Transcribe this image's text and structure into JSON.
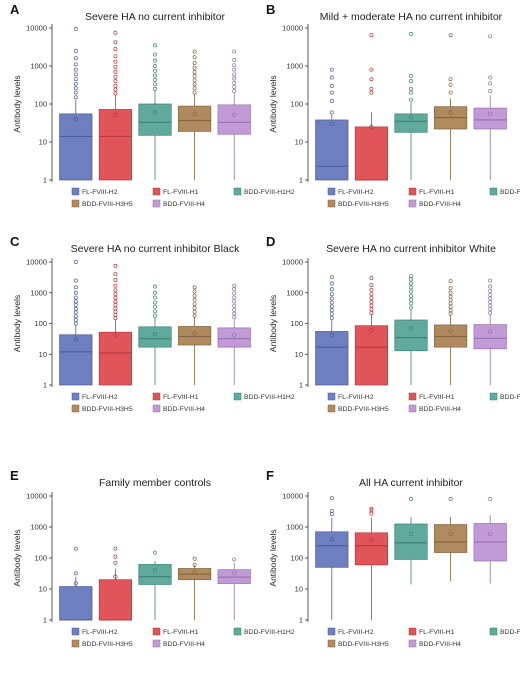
{
  "legend": {
    "series": [
      {
        "name": "FL-FVIII-H2",
        "fill": "#6e7fbf",
        "stroke": "#4d5c99"
      },
      {
        "name": "FL-FVIII-H1",
        "fill": "#e0545a",
        "stroke": "#b83a40"
      },
      {
        "name": "BDD-FVIII-H1H2",
        "fill": "#5faa9c",
        "stroke": "#3e8275"
      },
      {
        "name": "BDD-FVIII-H3H5",
        "fill": "#b08a5f",
        "stroke": "#84643f"
      },
      {
        "name": "BDD-FVIII-H4",
        "fill": "#c39ad8",
        "stroke": "#9570ab"
      }
    ]
  },
  "chart_data": [
    {
      "type": "box",
      "letter": "A",
      "title": "Severe HA no current inhibitor",
      "ylabel": "Antibody levels",
      "yscale": "log",
      "ylim": [
        1,
        10000
      ],
      "yticks": [
        "1",
        "10",
        "100",
        "1000",
        "10000"
      ],
      "series": [
        {
          "name": "FL-FVIII-H2",
          "min": 1,
          "q1": 1,
          "median": 14,
          "q3": 55,
          "whisker_high": 130,
          "mean": 40,
          "outliers": [
            150,
            200,
            260,
            340,
            450,
            600,
            800,
            1100,
            1600,
            2500,
            9500
          ]
        },
        {
          "name": "FL-FVIII-H1",
          "min": 1,
          "q1": 1,
          "median": 14,
          "q3": 72,
          "whisker_high": 170,
          "mean": 52,
          "outliers": [
            190,
            240,
            300,
            400,
            520,
            700,
            950,
            1300,
            1800,
            2800,
            4200,
            7500
          ]
        },
        {
          "name": "BDD-FVIII-H1H2",
          "min": 1,
          "q1": 15,
          "median": 33,
          "q3": 100,
          "whisker_high": 230,
          "mean": 60,
          "outliers": [
            250,
            330,
            430,
            560,
            750,
            1000,
            1400,
            2000,
            3500
          ]
        },
        {
          "name": "BDD-FVIII-H3H5",
          "min": 1,
          "q1": 19,
          "median": 37,
          "q3": 88,
          "whisker_high": 180,
          "mean": 55,
          "outliers": [
            200,
            260,
            330,
            420,
            550,
            700,
            900,
            1200,
            1700,
            2400
          ]
        },
        {
          "name": "BDD-FVIII-H4",
          "min": 1,
          "q1": 16,
          "median": 33,
          "q3": 95,
          "whisker_high": 200,
          "mean": 52,
          "outliers": [
            220,
            280,
            360,
            470,
            600,
            800,
            1050,
            1450,
            2400
          ]
        }
      ]
    },
    {
      "type": "box",
      "letter": "B",
      "title": "Mild + moderate HA no current inhibitor",
      "ylabel": "Antibody levels",
      "yscale": "log",
      "ylim": [
        1,
        10000
      ],
      "yticks": [
        "1",
        "10",
        "100",
        "1000",
        "10000"
      ],
      "series": [
        {
          "name": "FL-FVIII-H2",
          "min": 1,
          "q1": 1,
          "median": 2.3,
          "q3": 38,
          "whisker_high": 52,
          "mean": 30,
          "outliers": [
            60,
            120,
            200,
            300,
            500,
            800
          ]
        },
        {
          "name": "FL-FVIII-H1",
          "min": 1,
          "q1": 1,
          "median": 1,
          "q3": 25,
          "whisker_high": 60,
          "mean": 25,
          "outliers": [
            200,
            250,
            450,
            800,
            6500
          ]
        },
        {
          "name": "BDD-FVIII-H1H2",
          "min": 1,
          "q1": 18,
          "median": 35,
          "q3": 55,
          "whisker_high": 110,
          "mean": 45,
          "outliers": [
            130,
            200,
            250,
            400,
            550,
            7000
          ]
        },
        {
          "name": "BDD-FVIII-H3H5",
          "min": 1,
          "q1": 22,
          "median": 44,
          "q3": 85,
          "whisker_high": 140,
          "mean": 60,
          "outliers": [
            200,
            320,
            450,
            6500
          ]
        },
        {
          "name": "BDD-FVIII-H4",
          "min": 1,
          "q1": 22,
          "median": 38,
          "q3": 78,
          "whisker_high": 170,
          "mean": 55,
          "outliers": [
            220,
            350,
            500,
            6000
          ]
        }
      ]
    },
    {
      "type": "box",
      "letter": "C",
      "title": "Severe HA no current inhibitor Black",
      "ylabel": "Antibody levels",
      "yscale": "log",
      "ylim": [
        1,
        10000
      ],
      "yticks": [
        "1",
        "10",
        "100",
        "1000",
        "10000"
      ],
      "series": [
        {
          "name": "FL-FVIII-H2",
          "min": 1,
          "q1": 1,
          "median": 12,
          "q3": 43,
          "whisker_high": 90,
          "mean": 30,
          "outliers": [
            100,
            130,
            170,
            230,
            300,
            400,
            520,
            700,
            1000,
            1500,
            2500,
            10000
          ]
        },
        {
          "name": "FL-FVIII-H1",
          "min": 1,
          "q1": 1,
          "median": 11,
          "q3": 52,
          "whisker_high": 130,
          "mean": 40,
          "outliers": [
            150,
            190,
            240,
            310,
            400,
            520,
            680,
            900,
            1200,
            1700,
            2600,
            4000,
            7500
          ]
        },
        {
          "name": "BDD-FVIII-H1H2",
          "min": 1,
          "q1": 17,
          "median": 32,
          "q3": 78,
          "whisker_high": 160,
          "mean": 45,
          "outliers": [
            180,
            250,
            350,
            480,
            700,
            1000,
            1600
          ]
        },
        {
          "name": "BDD-FVIII-H3H5",
          "min": 1,
          "q1": 20,
          "median": 38,
          "q3": 80,
          "whisker_high": 160,
          "mean": 48,
          "outliers": [
            180,
            240,
            320,
            430,
            600,
            800,
            1100,
            1500
          ]
        },
        {
          "name": "BDD-FVIII-H4",
          "min": 1,
          "q1": 17,
          "median": 32,
          "q3": 72,
          "whisker_high": 140,
          "mean": 42,
          "outliers": [
            160,
            210,
            280,
            380,
            520,
            700,
            950,
            1300,
            1700
          ]
        }
      ]
    },
    {
      "type": "box",
      "letter": "D",
      "title": "Severe HA no current inhibitor White",
      "ylabel": "Antibody levels",
      "yscale": "log",
      "ylim": [
        1,
        10000
      ],
      "yticks": [
        "1",
        "10",
        "100",
        "1000",
        "10000"
      ],
      "series": [
        {
          "name": "FL-FVIII-H2",
          "min": 1,
          "q1": 1,
          "median": 17,
          "q3": 55,
          "whisker_high": 130,
          "mean": 42,
          "outliers": [
            150,
            200,
            270,
            360,
            480,
            650,
            900,
            1300,
            2000,
            3200
          ]
        },
        {
          "name": "FL-FVIII-H1",
          "min": 1,
          "q1": 1,
          "median": 17,
          "q3": 85,
          "whisker_high": 200,
          "mean": 60,
          "outliers": [
            220,
            290,
            380,
            500,
            680,
            900,
            1250,
            1800,
            3000
          ]
        },
        {
          "name": "BDD-FVIII-H1H2",
          "min": 1,
          "q1": 13,
          "median": 35,
          "q3": 130,
          "whisker_high": 300,
          "mean": 70,
          "outliers": [
            330,
            450,
            600,
            800,
            1100,
            1500,
            2000,
            2700,
            3500
          ]
        },
        {
          "name": "BDD-FVIII-H3H5",
          "min": 1,
          "q1": 17,
          "median": 38,
          "q3": 90,
          "whisker_high": 190,
          "mean": 55,
          "outliers": [
            210,
            270,
            350,
            450,
            580,
            750,
            1000,
            1400,
            2400
          ]
        },
        {
          "name": "BDD-FVIII-H4",
          "min": 1,
          "q1": 15,
          "median": 33,
          "q3": 92,
          "whisker_high": 200,
          "mean": 55,
          "outliers": [
            220,
            290,
            380,
            500,
            650,
            850,
            1150,
            1600,
            2500
          ]
        }
      ]
    },
    {
      "type": "box",
      "letter": "E",
      "title": "Family member controls",
      "ylabel": "Antibody levels",
      "yscale": "log",
      "ylim": [
        1,
        10000
      ],
      "yticks": [
        "1",
        "10",
        "100",
        "1000",
        "10000"
      ],
      "series": [
        {
          "name": "FL-FVIII-H2",
          "min": 1,
          "q1": 1,
          "median": 1,
          "q3": 12,
          "whisker_high": 25,
          "mean": 15,
          "outliers": [
            32,
            200
          ]
        },
        {
          "name": "FL-FVIII-H1",
          "min": 1,
          "q1": 1,
          "median": 1,
          "q3": 20,
          "whisker_high": 45,
          "mean": 25,
          "outliers": [
            70,
            110,
            200
          ]
        },
        {
          "name": "BDD-FVIII-H1H2",
          "min": 1,
          "q1": 14,
          "median": 25,
          "q3": 62,
          "whisker_high": 80,
          "mean": 40,
          "outliers": [
            150
          ]
        },
        {
          "name": "BDD-FVIII-H3H5",
          "min": 1,
          "q1": 20,
          "median": 30,
          "q3": 46,
          "whisker_high": 58,
          "mean": 35,
          "outliers": [
            60,
            95
          ]
        },
        {
          "name": "BDD-FVIII-H4",
          "min": 1,
          "q1": 15,
          "median": 24,
          "q3": 42,
          "whisker_high": 70,
          "mean": 32,
          "outliers": [
            90
          ]
        }
      ]
    },
    {
      "type": "box",
      "letter": "F",
      "title": "All HA current inhibitor",
      "ylabel": "Antibody levels",
      "yscale": "log",
      "ylim": [
        1,
        10000
      ],
      "yticks": [
        "1",
        "10",
        "100",
        "1000",
        "10000"
      ],
      "series": [
        {
          "name": "FL-FVIII-H2",
          "min": 1,
          "q1": 50,
          "median": 250,
          "q3": 700,
          "whisker_high": 2000,
          "mean": 400,
          "outliers": [
            2600,
            3300,
            8500
          ]
        },
        {
          "name": "FL-FVIII-H1",
          "min": 1,
          "q1": 60,
          "median": 250,
          "q3": 650,
          "whisker_high": 2000,
          "mean": 380,
          "outliers": [
            2700,
            3500,
            3900
          ]
        },
        {
          "name": "BDD-FVIII-H1H2",
          "min": 14,
          "q1": 90,
          "median": 310,
          "q3": 1250,
          "whisker_high": 2100,
          "mean": 600,
          "outliers": [
            8000
          ]
        },
        {
          "name": "BDD-FVIII-H3H5",
          "min": 18,
          "q1": 150,
          "median": 330,
          "q3": 1200,
          "whisker_high": 2100,
          "mean": 600,
          "outliers": [
            8000
          ]
        },
        {
          "name": "BDD-FVIII-H4",
          "min": 15,
          "q1": 80,
          "median": 330,
          "q3": 1300,
          "whisker_high": 2400,
          "mean": 600,
          "outliers": [
            8000
          ]
        }
      ]
    }
  ]
}
